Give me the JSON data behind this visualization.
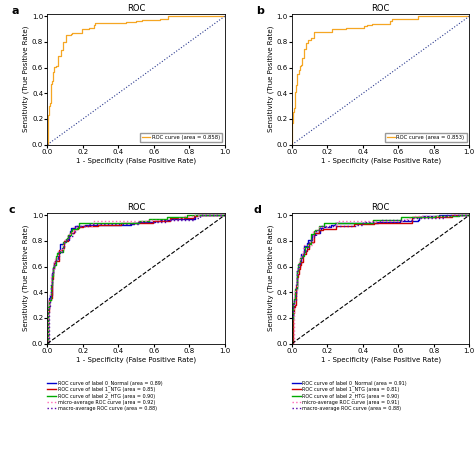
{
  "title": "ROC",
  "xlabel": "1 - Specificity (False Positive Rate)",
  "ylabel": "Sensitivity (True Positive Rate)",
  "panel_a": {
    "label": "a",
    "legend": "ROC curve (area = 0.858)",
    "curve_color": "#f5a623",
    "diag_color": "#2b3a8f"
  },
  "panel_b": {
    "label": "b",
    "legend": "ROC curve (area = 0.853)",
    "curve_color": "#f5a623",
    "diag_color": "#2b3a8f"
  },
  "panel_c": {
    "label": "c",
    "lines": [
      {
        "label": "ROC curve of label 0_Normal (area = 0.89)",
        "color": "#0000cc",
        "auc": 0.89,
        "style": "-"
      },
      {
        "label": "ROC curve of label 1_NTG (area = 0.85)",
        "color": "#cc0000",
        "auc": 0.85,
        "style": "-"
      },
      {
        "label": "ROC curve of label 2_HTG (area = 0.90)",
        "color": "#00aa00",
        "auc": 0.9,
        "style": "-"
      },
      {
        "label": "micro-average ROC curve (area = 0.92)",
        "color": "#ff69b4",
        "auc": 0.92,
        "style": ":"
      },
      {
        "label": "macro-average ROC curve (area = 0.88)",
        "color": "#5500aa",
        "auc": 0.88,
        "style": ":"
      }
    ]
  },
  "panel_d": {
    "label": "d",
    "lines": [
      {
        "label": "ROC curve of label 0_Normal (area = 0.91)",
        "color": "#0000cc",
        "auc": 0.91,
        "style": "-"
      },
      {
        "label": "ROC curve of label 1_NTG (area = 0.81)",
        "color": "#cc0000",
        "auc": 0.81,
        "style": "-"
      },
      {
        "label": "ROC curve of label 2_HTG (area = 0.90)",
        "color": "#00aa00",
        "auc": 0.9,
        "style": "-"
      },
      {
        "label": "micro-average ROC curve (area = 0.91)",
        "color": "#ff69b4",
        "auc": 0.91,
        "style": ":"
      },
      {
        "label": "macro-average ROC curve (area = 0.88)",
        "color": "#5500aa",
        "auc": 0.88,
        "style": ":"
      }
    ]
  }
}
